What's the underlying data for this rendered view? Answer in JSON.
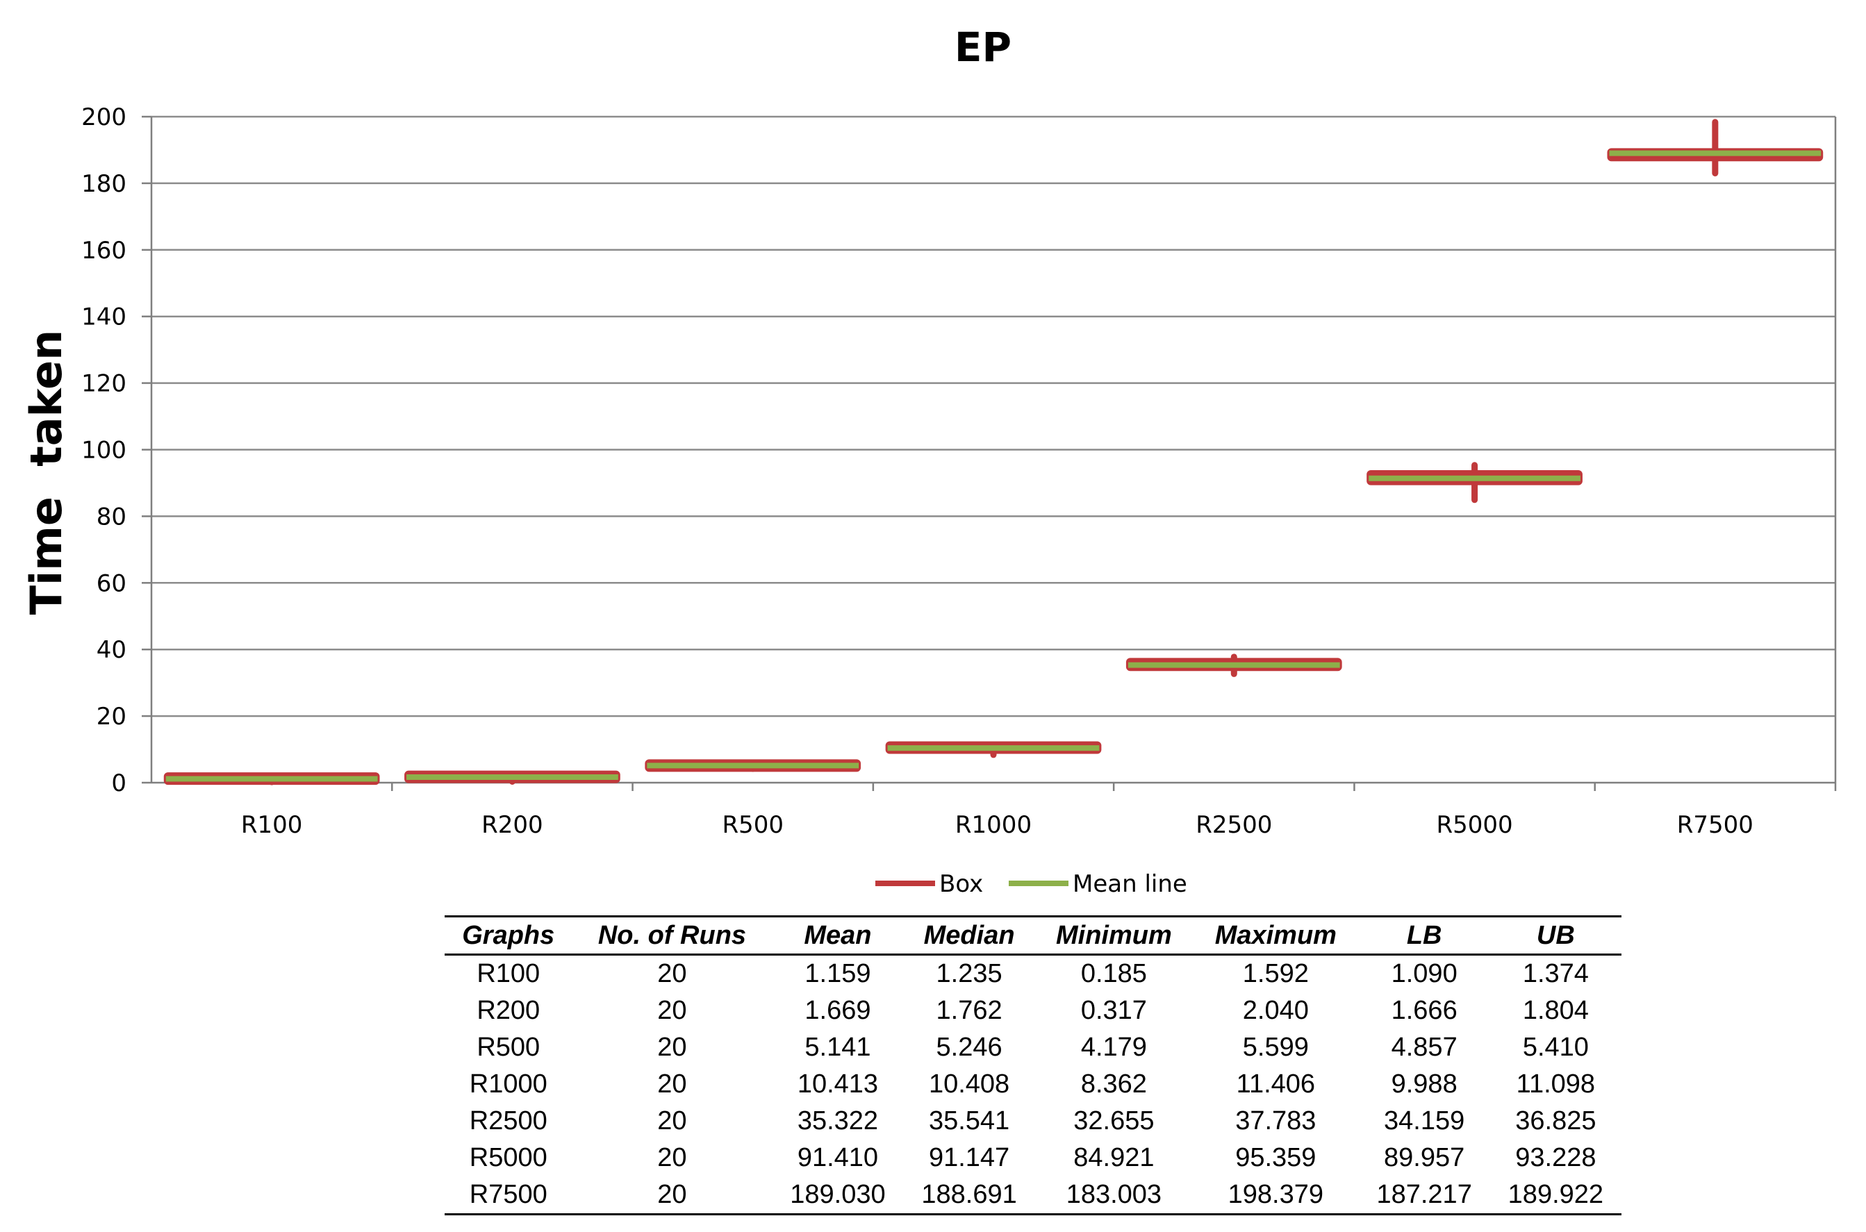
{
  "chart_data": {
    "type": "box",
    "title": "EP",
    "ylabel": "Time  taken",
    "xlabel": "",
    "ylim": [
      0,
      200
    ],
    "ytick_step": 20,
    "grid": true,
    "legend_position": "bottom",
    "legend": [
      {
        "name": "Box",
        "color": "#c0393b"
      },
      {
        "name": "Mean line",
        "color": "#8db04a"
      }
    ],
    "categories": [
      "R100",
      "R200",
      "R500",
      "R1000",
      "R2500",
      "R5000",
      "R7500"
    ],
    "mean": [
      1.159,
      1.669,
      5.141,
      10.413,
      35.322,
      91.41,
      189.03
    ],
    "median": [
      1.235,
      1.762,
      5.246,
      10.408,
      35.541,
      91.147,
      188.691
    ],
    "min": [
      0.185,
      0.317,
      4.179,
      8.362,
      32.655,
      84.921,
      183.003
    ],
    "max": [
      1.592,
      2.04,
      5.599,
      11.406,
      37.783,
      95.359,
      198.379
    ],
    "lb": [
      1.09,
      1.666,
      4.857,
      9.988,
      34.159,
      89.957,
      187.217
    ],
    "ub": [
      1.374,
      1.804,
      5.41,
      11.098,
      36.825,
      93.228,
      189.922
    ],
    "colors": {
      "box": "#c0393b",
      "mean": "#8db04a",
      "grid": "#8c8c8c",
      "axis": "#7f7f7f"
    }
  },
  "table": {
    "headers": [
      "Graphs",
      "No. of Runs",
      "Mean",
      "Median",
      "Minimum",
      "Maximum",
      "LB",
      "UB"
    ],
    "rows": [
      [
        "R100",
        "20",
        "1.159",
        "1.235",
        "0.185",
        "1.592",
        "1.090",
        "1.374"
      ],
      [
        "R200",
        "20",
        "1.669",
        "1.762",
        "0.317",
        "2.040",
        "1.666",
        "1.804"
      ],
      [
        "R500",
        "20",
        "5.141",
        "5.246",
        "4.179",
        "5.599",
        "4.857",
        "5.410"
      ],
      [
        "R1000",
        "20",
        "10.413",
        "10.408",
        "8.362",
        "11.406",
        "9.988",
        "11.098"
      ],
      [
        "R2500",
        "20",
        "35.322",
        "35.541",
        "32.655",
        "37.783",
        "34.159",
        "36.825"
      ],
      [
        "R5000",
        "20",
        "91.410",
        "91.147",
        "84.921",
        "95.359",
        "89.957",
        "93.228"
      ],
      [
        "R7500",
        "20",
        "189.030",
        "188.691",
        "183.003",
        "198.379",
        "187.217",
        "189.922"
      ]
    ]
  }
}
